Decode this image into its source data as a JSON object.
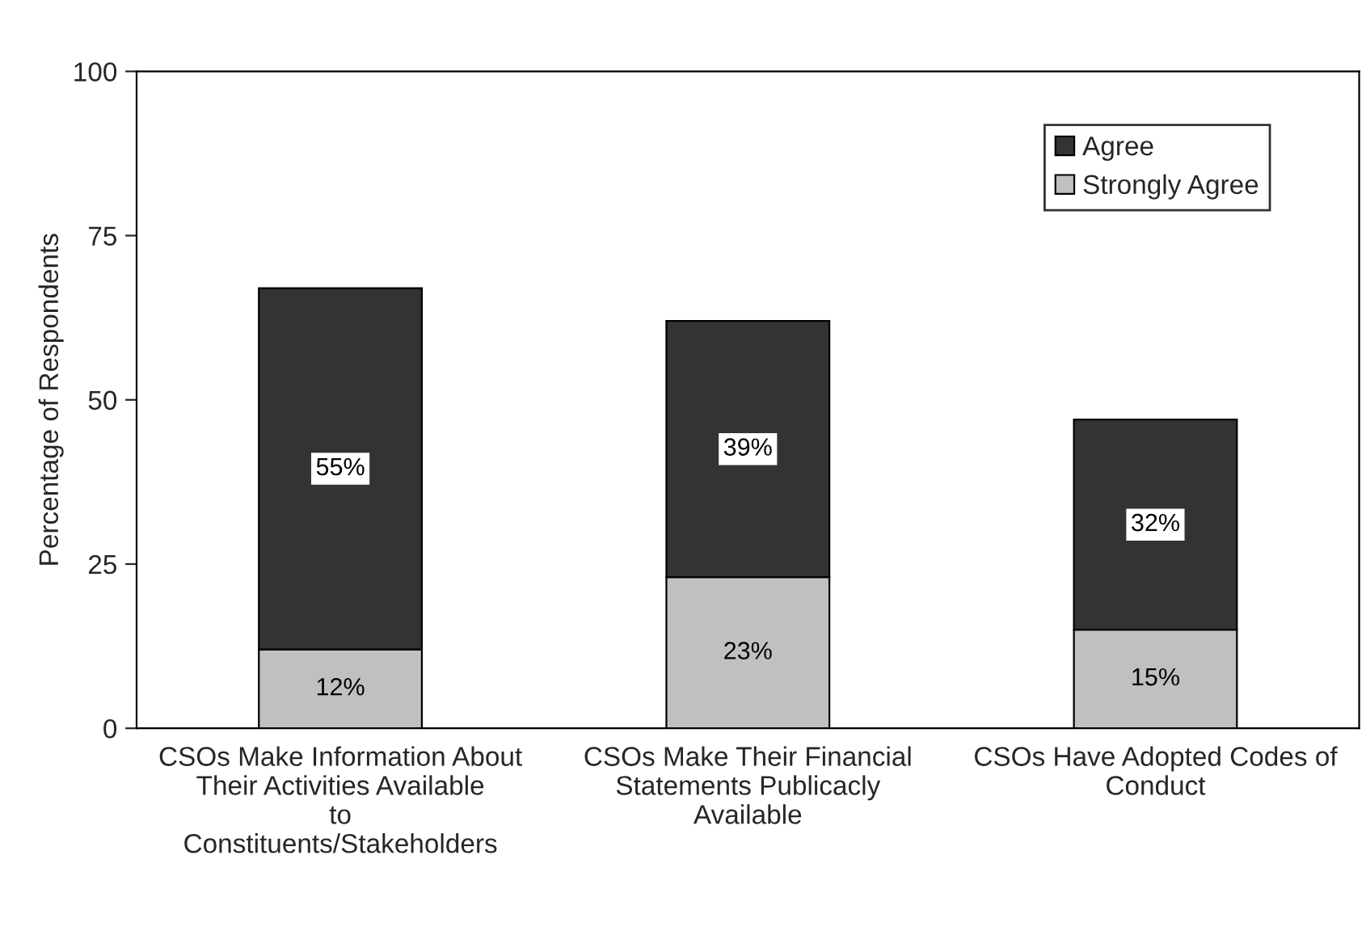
{
  "chart_data": {
    "type": "bar",
    "stacked": true,
    "ylabel": "Percentage of Respondents",
    "categories": [
      "CSOs Make Information About Their Activities Available to Constituents/Stakeholders",
      "CSOs Make Their Financial Statements Publicacly Available",
      "CSOs Have Adopted Codes of Conduct"
    ],
    "series": [
      {
        "name": "Strongly Agree",
        "color": "#c0c0c0",
        "values": [
          12,
          23,
          15
        ],
        "value_labels": [
          "12%",
          "23%",
          "15%"
        ]
      },
      {
        "name": "Agree",
        "color": "#333333",
        "values": [
          55,
          39,
          32
        ],
        "value_labels": [
          "55%",
          "39%",
          "32%"
        ]
      }
    ],
    "ylim": [
      0,
      100
    ],
    "yticks": [
      0,
      25,
      50,
      75,
      100
    ],
    "grid": false,
    "legend": "top right"
  }
}
